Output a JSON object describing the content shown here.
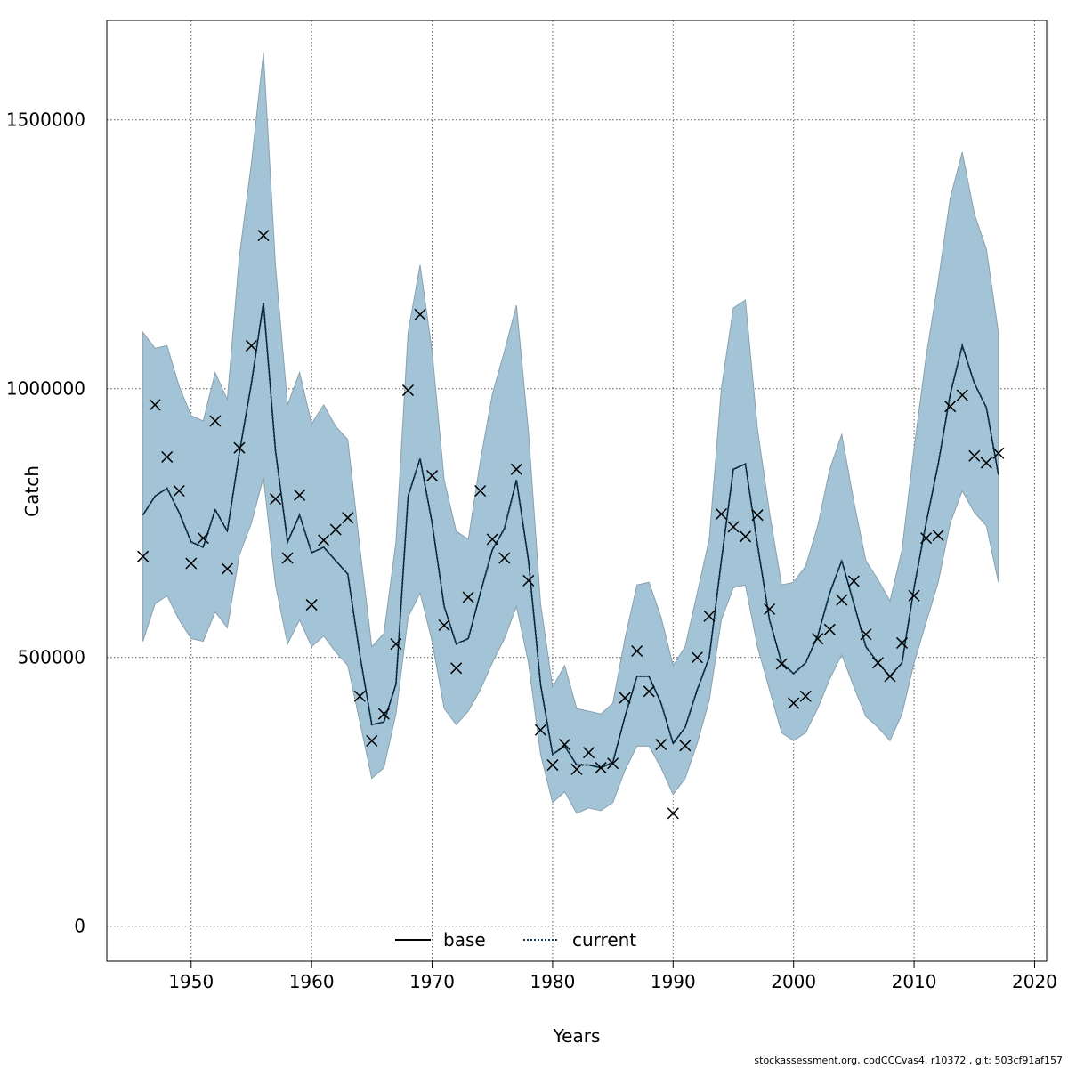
{
  "chart_data": {
    "type": "line",
    "title": "",
    "xlabel": "Years",
    "ylabel": "Catch",
    "xlim": [
      1943,
      2021
    ],
    "ylim": [
      -65000,
      1685000
    ],
    "x_ticks": [
      1950,
      1960,
      1970,
      1980,
      1990,
      2000,
      2010,
      2020
    ],
    "y_ticks": [
      0,
      500000,
      1000000,
      1500000
    ],
    "y_tick_labels": [
      "0",
      "500000",
      "1000000",
      "1500000"
    ],
    "grid": true,
    "band_color": "#a3c3d6",
    "years": [
      1946,
      1947,
      1948,
      1949,
      1950,
      1951,
      1952,
      1953,
      1954,
      1955,
      1956,
      1957,
      1958,
      1959,
      1960,
      1961,
      1962,
      1963,
      1964,
      1965,
      1966,
      1967,
      1968,
      1969,
      1970,
      1971,
      1972,
      1973,
      1974,
      1975,
      1976,
      1977,
      1978,
      1979,
      1980,
      1981,
      1982,
      1983,
      1984,
      1985,
      1986,
      1987,
      1988,
      1989,
      1990,
      1991,
      1992,
      1993,
      1994,
      1995,
      1996,
      1997,
      1998,
      1999,
      2000,
      2001,
      2002,
      2003,
      2004,
      2005,
      2006,
      2007,
      2008,
      2009,
      2010,
      2011,
      2012,
      2013,
      2014,
      2015,
      2016,
      2017
    ],
    "series": [
      {
        "name": "current",
        "style": "dotted",
        "color": "#0a3d62",
        "values": [
          765000,
          800000,
          815000,
          770000,
          715000,
          705000,
          775000,
          735000,
          880000,
          1010000,
          1160000,
          885000,
          715000,
          765000,
          695000,
          705000,
          680000,
          655000,
          505000,
          375000,
          380000,
          450000,
          800000,
          870000,
          750000,
          595000,
          525000,
          535000,
          620000,
          700000,
          740000,
          830000,
          680000,
          450000,
          320000,
          335000,
          300000,
          300000,
          295000,
          305000,
          390000,
          465000,
          465000,
          415000,
          340000,
          370000,
          440000,
          500000,
          680000,
          850000,
          860000,
          710000,
          570000,
          490000,
          470000,
          490000,
          540000,
          620000,
          680000,
          600000,
          520000,
          490000,
          465000,
          490000,
          630000,
          750000,
          860000,
          990000,
          1080000,
          1010000,
          965000,
          840000
        ]
      },
      {
        "name": "base",
        "style": "solid",
        "color": "#000000",
        "values": [
          765000,
          800000,
          815000,
          770000,
          715000,
          705000,
          775000,
          735000,
          880000,
          1010000,
          1160000,
          885000,
          715000,
          765000,
          695000,
          705000,
          680000,
          655000,
          505000,
          375000,
          380000,
          450000,
          800000,
          870000,
          750000,
          595000,
          525000,
          535000,
          620000,
          700000,
          740000,
          830000,
          680000,
          450000,
          320000,
          335000,
          300000,
          300000,
          295000,
          305000,
          390000,
          465000,
          465000,
          415000,
          340000,
          370000,
          440000,
          500000,
          680000,
          850000,
          860000,
          710000,
          570000,
          490000,
          470000,
          490000,
          540000,
          620000,
          680000,
          600000,
          520000,
          490000,
          465000,
          490000,
          630000,
          750000,
          860000,
          990000,
          1080000,
          1010000,
          965000,
          840000
        ]
      }
    ],
    "band_upper": [
      1105000,
      1075000,
      1080000,
      1005000,
      950000,
      940000,
      1030000,
      980000,
      1245000,
      1420000,
      1625000,
      1230000,
      970000,
      1030000,
      935000,
      970000,
      930000,
      905000,
      705000,
      520000,
      545000,
      715000,
      1105000,
      1230000,
      1070000,
      830000,
      735000,
      720000,
      865000,
      990000,
      1070000,
      1155000,
      920000,
      600000,
      445000,
      485000,
      405000,
      400000,
      395000,
      415000,
      535000,
      635000,
      640000,
      575000,
      485000,
      520000,
      620000,
      720000,
      1000000,
      1150000,
      1165000,
      925000,
      770000,
      635000,
      640000,
      670000,
      745000,
      850000,
      915000,
      790000,
      680000,
      645000,
      605000,
      700000,
      890000,
      1060000,
      1200000,
      1355000,
      1440000,
      1325000,
      1260000,
      1105000
    ],
    "band_lower": [
      530000,
      600000,
      615000,
      570000,
      535000,
      530000,
      585000,
      555000,
      690000,
      750000,
      835000,
      635000,
      525000,
      570000,
      520000,
      540000,
      510000,
      485000,
      380000,
      275000,
      295000,
      395000,
      575000,
      620000,
      530000,
      405000,
      375000,
      400000,
      440000,
      490000,
      535000,
      595000,
      490000,
      320000,
      230000,
      250000,
      210000,
      220000,
      215000,
      230000,
      290000,
      335000,
      335000,
      295000,
      245000,
      275000,
      340000,
      420000,
      570000,
      630000,
      635000,
      520000,
      440000,
      360000,
      345000,
      360000,
      405000,
      460000,
      505000,
      445000,
      390000,
      370000,
      345000,
      395000,
      490000,
      565000,
      640000,
      750000,
      810000,
      770000,
      745000,
      640000
    ],
    "observed": {
      "marker": "x",
      "values": [
        688000,
        970000,
        873000,
        810000,
        675000,
        722000,
        940000,
        665000,
        890000,
        1080000,
        1285000,
        795000,
        685000,
        802000,
        598000,
        718000,
        738000,
        760000,
        428000,
        345000,
        395000,
        525000,
        997000,
        1138000,
        838000,
        560000,
        480000,
        612000,
        810000,
        720000,
        685000,
        850000,
        643000,
        365000,
        300000,
        338000,
        292000,
        323000,
        295000,
        303000,
        425000,
        512000,
        437000,
        338000,
        210000,
        336000,
        500000,
        577000,
        767000,
        743000,
        725000,
        765000,
        590000,
        488000,
        415000,
        428000,
        535000,
        552000,
        607000,
        642000,
        543000,
        490000,
        465000,
        527000,
        615000,
        722000,
        727000,
        967000,
        988000,
        875000,
        862000,
        880000
      ]
    },
    "legend": {
      "placement": "bottom-center",
      "entries": [
        {
          "label": "base",
          "style": "solid",
          "color": "#000000"
        },
        {
          "label": "current",
          "style": "dotted",
          "color": "#0a3d62"
        }
      ]
    }
  },
  "footer_text": "stockassessment.org, codCCCvas4, r10372 , git: 503cf91af157"
}
